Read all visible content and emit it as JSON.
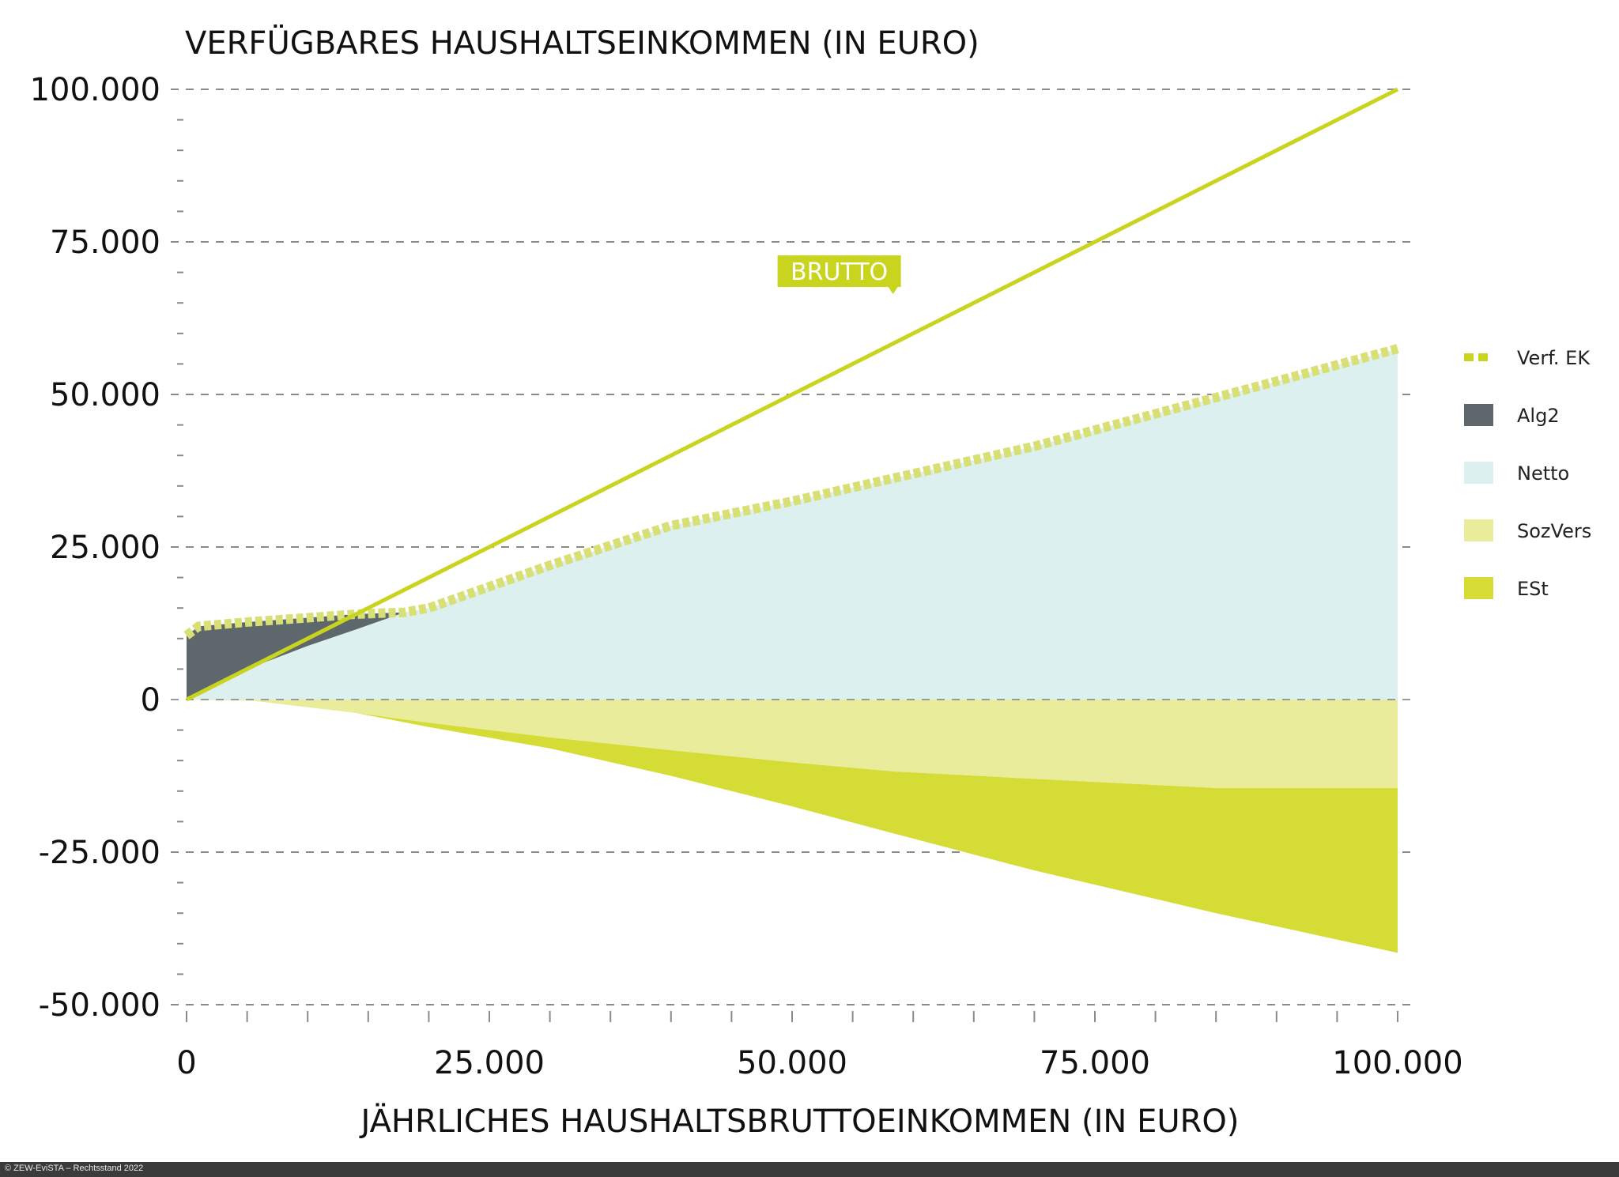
{
  "chart_data": {
    "type": "area",
    "title": "VERFÜGBARES HAUSHALTSEINKOMMEN (IN EURO)",
    "xlabel": "JÄHRLICHES HAUSHALTSBRUTTOEINKOMMEN (IN EURO)",
    "ylabel": "",
    "xlim": [
      0,
      100000
    ],
    "ylim": [
      -50000,
      100000
    ],
    "x_ticks": [
      0,
      25000,
      50000,
      75000,
      100000
    ],
    "x_tick_labels": [
      "0",
      "25.000",
      "50.000",
      "75.000",
      "100.000"
    ],
    "y_ticks": [
      -50000,
      -25000,
      0,
      25000,
      50000,
      75000,
      100000
    ],
    "y_tick_labels": [
      "-50.000",
      "-25.000",
      "0",
      "25.000",
      "50.000",
      "75.000",
      "100.000"
    ],
    "grid": "horizontal dashed",
    "legend_position": "right",
    "series": [
      {
        "name": "Verf. EK",
        "style": "dotted-line",
        "color": "#c8d41e",
        "x": [
          0,
          1000,
          5000,
          10000,
          14000,
          18000,
          20000,
          30000,
          40000,
          50000,
          60000,
          70000,
          85000,
          100000
        ],
        "values": [
          10500,
          12000,
          12700,
          13400,
          14000,
          14300,
          15000,
          22000,
          28500,
          32500,
          37000,
          41500,
          49500,
          57500
        ]
      },
      {
        "name": "Alg2",
        "style": "area",
        "color": "#5d676c",
        "x": [
          0,
          1000,
          5000,
          10000,
          14000,
          18000
        ],
        "lower": [
          0,
          1000,
          5000,
          8800,
          11500,
          14300
        ],
        "upper": [
          10500,
          12000,
          12700,
          13400,
          14000,
          14300
        ]
      },
      {
        "name": "Netto",
        "style": "area",
        "color": "#dcf0ef",
        "x": [
          0,
          5000,
          10000,
          14000,
          18000,
          20000,
          30000,
          40000,
          50000,
          60000,
          70000,
          85000,
          100000
        ],
        "values": [
          0,
          5000,
          8800,
          11500,
          14300,
          15000,
          22000,
          28500,
          32500,
          37000,
          41500,
          49500,
          57500
        ]
      },
      {
        "name": "SozVers",
        "style": "area",
        "color": "#e9ec9a",
        "x": [
          0,
          5500,
          14000,
          20000,
          30000,
          40000,
          50000,
          58500,
          70000,
          85000,
          100000
        ],
        "values": [
          0,
          -200,
          -2200,
          -3800,
          -6200,
          -8300,
          -10300,
          -11800,
          -13000,
          -14500,
          -14500
        ]
      },
      {
        "name": "ESt",
        "style": "area",
        "color": "#d4dc35",
        "x": [
          14000,
          20000,
          30000,
          40000,
          50000,
          58500,
          70000,
          85000,
          100000
        ],
        "lower": [
          -2200,
          -4500,
          -8000,
          -12500,
          -17500,
          -22000,
          -28000,
          -35000,
          -41500
        ],
        "upper": [
          -2200,
          -3800,
          -6200,
          -8300,
          -10300,
          -11800,
          -13000,
          -14500,
          -14500
        ]
      },
      {
        "name": "BRUTTO",
        "style": "line",
        "color": "#c8d41e",
        "x": [
          0,
          100000
        ],
        "values": [
          0,
          100000
        ]
      }
    ],
    "annotations": [
      {
        "text": "BRUTTO",
        "x": 55000,
        "y": 68000
      }
    ]
  },
  "legend": [
    {
      "label": "Verf. EK",
      "kind": "dots",
      "color": "#c8d41e"
    },
    {
      "label": "Alg2",
      "kind": "box",
      "color": "#5d676c"
    },
    {
      "label": "Netto",
      "kind": "box",
      "color": "#dcf0ef"
    },
    {
      "label": "SozVers",
      "kind": "box",
      "color": "#e9ec9a"
    },
    {
      "label": "ESt",
      "kind": "box",
      "color": "#d4dc35"
    }
  ],
  "footer": {
    "text": "© ZEW-EviSTA – Rechtsstand 2022"
  }
}
